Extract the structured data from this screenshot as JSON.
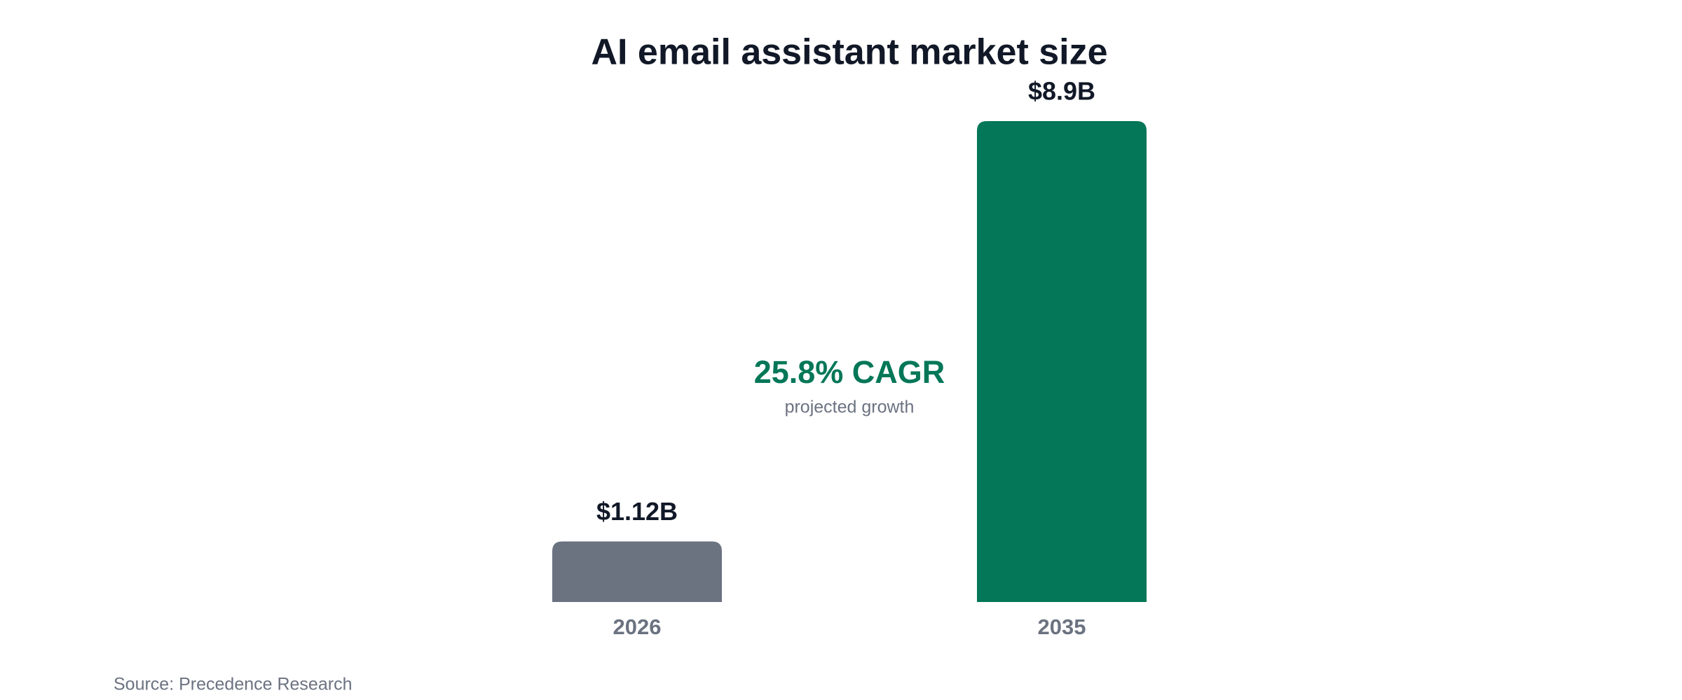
{
  "chart_data": {
    "type": "bar",
    "title": "AI email assistant market size",
    "categories": [
      "2026",
      "2035"
    ],
    "values": [
      1.12,
      8.9
    ],
    "value_labels": [
      "$1.12B",
      "$8.9B"
    ],
    "colors": [
      "#6b7280",
      "#037758"
    ],
    "annotation": "25.8% CAGR",
    "annotation_subtitle": "projected growth",
    "source": "Source: Precedence Research"
  }
}
